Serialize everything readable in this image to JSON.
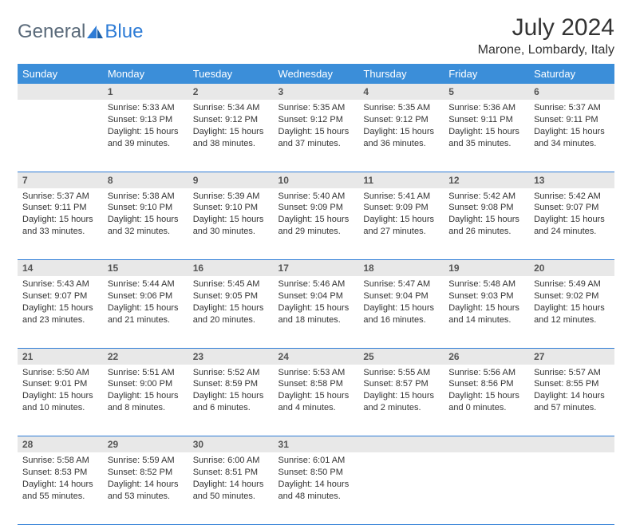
{
  "brand": {
    "general": "General",
    "blue": "Blue"
  },
  "title": "July 2024",
  "location": "Marone, Lombardy, Italy",
  "colors": {
    "header_bg": "#3b8ed9",
    "header_text": "#ffffff",
    "row_border": "#2e7cd6",
    "daynum_bg": "#e8e8e8",
    "text": "#333333",
    "logo_gray": "#5a6a7a",
    "logo_blue": "#2e7cd6"
  },
  "weekdays": [
    "Sunday",
    "Monday",
    "Tuesday",
    "Wednesday",
    "Thursday",
    "Friday",
    "Saturday"
  ],
  "weeks": [
    {
      "nums": [
        "",
        "1",
        "2",
        "3",
        "4",
        "5",
        "6"
      ],
      "cells": [
        null,
        {
          "sunrise": "Sunrise: 5:33 AM",
          "sunset": "Sunset: 9:13 PM",
          "daylight": "Daylight: 15 hours and 39 minutes."
        },
        {
          "sunrise": "Sunrise: 5:34 AM",
          "sunset": "Sunset: 9:12 PM",
          "daylight": "Daylight: 15 hours and 38 minutes."
        },
        {
          "sunrise": "Sunrise: 5:35 AM",
          "sunset": "Sunset: 9:12 PM",
          "daylight": "Daylight: 15 hours and 37 minutes."
        },
        {
          "sunrise": "Sunrise: 5:35 AM",
          "sunset": "Sunset: 9:12 PM",
          "daylight": "Daylight: 15 hours and 36 minutes."
        },
        {
          "sunrise": "Sunrise: 5:36 AM",
          "sunset": "Sunset: 9:11 PM",
          "daylight": "Daylight: 15 hours and 35 minutes."
        },
        {
          "sunrise": "Sunrise: 5:37 AM",
          "sunset": "Sunset: 9:11 PM",
          "daylight": "Daylight: 15 hours and 34 minutes."
        }
      ]
    },
    {
      "nums": [
        "7",
        "8",
        "9",
        "10",
        "11",
        "12",
        "13"
      ],
      "cells": [
        {
          "sunrise": "Sunrise: 5:37 AM",
          "sunset": "Sunset: 9:11 PM",
          "daylight": "Daylight: 15 hours and 33 minutes."
        },
        {
          "sunrise": "Sunrise: 5:38 AM",
          "sunset": "Sunset: 9:10 PM",
          "daylight": "Daylight: 15 hours and 32 minutes."
        },
        {
          "sunrise": "Sunrise: 5:39 AM",
          "sunset": "Sunset: 9:10 PM",
          "daylight": "Daylight: 15 hours and 30 minutes."
        },
        {
          "sunrise": "Sunrise: 5:40 AM",
          "sunset": "Sunset: 9:09 PM",
          "daylight": "Daylight: 15 hours and 29 minutes."
        },
        {
          "sunrise": "Sunrise: 5:41 AM",
          "sunset": "Sunset: 9:09 PM",
          "daylight": "Daylight: 15 hours and 27 minutes."
        },
        {
          "sunrise": "Sunrise: 5:42 AM",
          "sunset": "Sunset: 9:08 PM",
          "daylight": "Daylight: 15 hours and 26 minutes."
        },
        {
          "sunrise": "Sunrise: 5:42 AM",
          "sunset": "Sunset: 9:07 PM",
          "daylight": "Daylight: 15 hours and 24 minutes."
        }
      ]
    },
    {
      "nums": [
        "14",
        "15",
        "16",
        "17",
        "18",
        "19",
        "20"
      ],
      "cells": [
        {
          "sunrise": "Sunrise: 5:43 AM",
          "sunset": "Sunset: 9:07 PM",
          "daylight": "Daylight: 15 hours and 23 minutes."
        },
        {
          "sunrise": "Sunrise: 5:44 AM",
          "sunset": "Sunset: 9:06 PM",
          "daylight": "Daylight: 15 hours and 21 minutes."
        },
        {
          "sunrise": "Sunrise: 5:45 AM",
          "sunset": "Sunset: 9:05 PM",
          "daylight": "Daylight: 15 hours and 20 minutes."
        },
        {
          "sunrise": "Sunrise: 5:46 AM",
          "sunset": "Sunset: 9:04 PM",
          "daylight": "Daylight: 15 hours and 18 minutes."
        },
        {
          "sunrise": "Sunrise: 5:47 AM",
          "sunset": "Sunset: 9:04 PM",
          "daylight": "Daylight: 15 hours and 16 minutes."
        },
        {
          "sunrise": "Sunrise: 5:48 AM",
          "sunset": "Sunset: 9:03 PM",
          "daylight": "Daylight: 15 hours and 14 minutes."
        },
        {
          "sunrise": "Sunrise: 5:49 AM",
          "sunset": "Sunset: 9:02 PM",
          "daylight": "Daylight: 15 hours and 12 minutes."
        }
      ]
    },
    {
      "nums": [
        "21",
        "22",
        "23",
        "24",
        "25",
        "26",
        "27"
      ],
      "cells": [
        {
          "sunrise": "Sunrise: 5:50 AM",
          "sunset": "Sunset: 9:01 PM",
          "daylight": "Daylight: 15 hours and 10 minutes."
        },
        {
          "sunrise": "Sunrise: 5:51 AM",
          "sunset": "Sunset: 9:00 PM",
          "daylight": "Daylight: 15 hours and 8 minutes."
        },
        {
          "sunrise": "Sunrise: 5:52 AM",
          "sunset": "Sunset: 8:59 PM",
          "daylight": "Daylight: 15 hours and 6 minutes."
        },
        {
          "sunrise": "Sunrise: 5:53 AM",
          "sunset": "Sunset: 8:58 PM",
          "daylight": "Daylight: 15 hours and 4 minutes."
        },
        {
          "sunrise": "Sunrise: 5:55 AM",
          "sunset": "Sunset: 8:57 PM",
          "daylight": "Daylight: 15 hours and 2 minutes."
        },
        {
          "sunrise": "Sunrise: 5:56 AM",
          "sunset": "Sunset: 8:56 PM",
          "daylight": "Daylight: 15 hours and 0 minutes."
        },
        {
          "sunrise": "Sunrise: 5:57 AM",
          "sunset": "Sunset: 8:55 PM",
          "daylight": "Daylight: 14 hours and 57 minutes."
        }
      ]
    },
    {
      "nums": [
        "28",
        "29",
        "30",
        "31",
        "",
        "",
        ""
      ],
      "cells": [
        {
          "sunrise": "Sunrise: 5:58 AM",
          "sunset": "Sunset: 8:53 PM",
          "daylight": "Daylight: 14 hours and 55 minutes."
        },
        {
          "sunrise": "Sunrise: 5:59 AM",
          "sunset": "Sunset: 8:52 PM",
          "daylight": "Daylight: 14 hours and 53 minutes."
        },
        {
          "sunrise": "Sunrise: 6:00 AM",
          "sunset": "Sunset: 8:51 PM",
          "daylight": "Daylight: 14 hours and 50 minutes."
        },
        {
          "sunrise": "Sunrise: 6:01 AM",
          "sunset": "Sunset: 8:50 PM",
          "daylight": "Daylight: 14 hours and 48 minutes."
        },
        null,
        null,
        null
      ]
    }
  ]
}
